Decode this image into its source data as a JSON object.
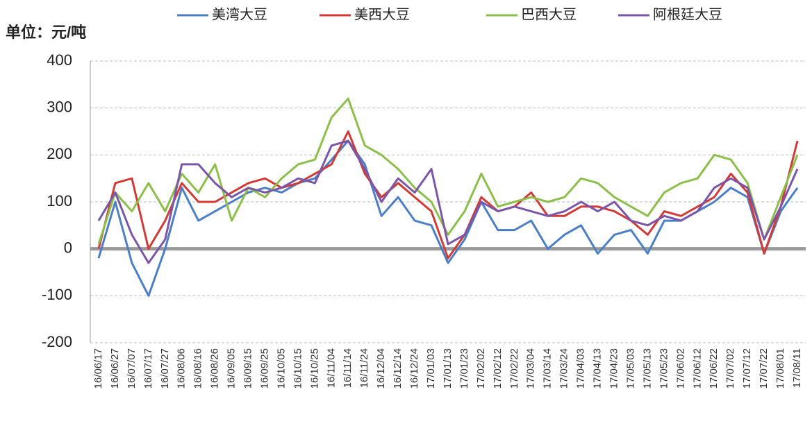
{
  "chart_data": {
    "type": "line",
    "y_label": "单位：元/吨",
    "categories": [
      "16/06/17",
      "16/06/27",
      "16/07/07",
      "16/07/17",
      "16/07/27",
      "16/08/06",
      "16/08/16",
      "16/08/26",
      "16/09/05",
      "16/09/15",
      "16/09/25",
      "16/10/05",
      "16/10/15",
      "16/10/25",
      "16/11/04",
      "16/11/14",
      "16/11/24",
      "16/12/04",
      "16/12/14",
      "16/12/24",
      "17/01/03",
      "17/01/13",
      "17/01/23",
      "17/02/02",
      "17/02/12",
      "17/02/22",
      "17/03/04",
      "17/03/14",
      "17/03/24",
      "17/04/03",
      "17/04/13",
      "17/04/23",
      "17/05/03",
      "17/05/13",
      "17/05/23",
      "17/06/02",
      "17/06/12",
      "17/06/22",
      "17/07/02",
      "17/07/12",
      "17/07/22",
      "17/08/01",
      "17/08/11"
    ],
    "series": [
      {
        "name": "美湾大豆",
        "color": "#4a7fc7",
        "values": [
          -20,
          100,
          -30,
          -100,
          0,
          130,
          60,
          80,
          100,
          120,
          130,
          120,
          140,
          150,
          190,
          230,
          180,
          70,
          110,
          60,
          50,
          -30,
          20,
          100,
          40,
          40,
          60,
          0,
          30,
          50,
          -10,
          30,
          40,
          -10,
          60,
          60,
          80,
          100,
          130,
          110,
          -10,
          80,
          130
        ]
      },
      {
        "name": "美西大豆",
        "color": "#d23a36",
        "values": [
          0,
          140,
          150,
          0,
          60,
          140,
          100,
          100,
          120,
          140,
          150,
          130,
          140,
          160,
          180,
          250,
          160,
          110,
          140,
          110,
          80,
          -20,
          30,
          110,
          80,
          90,
          120,
          70,
          70,
          90,
          90,
          80,
          60,
          30,
          80,
          70,
          90,
          110,
          160,
          120,
          -10,
          90,
          230
        ]
      },
      {
        "name": "巴西大豆",
        "color": "#8cbf4a",
        "values": [
          10,
          120,
          80,
          140,
          80,
          160,
          120,
          180,
          60,
          130,
          110,
          150,
          180,
          190,
          280,
          320,
          220,
          200,
          170,
          130,
          100,
          30,
          80,
          160,
          90,
          100,
          110,
          100,
          110,
          150,
          140,
          110,
          90,
          70,
          120,
          140,
          150,
          200,
          190,
          140,
          20,
          110,
          200
        ]
      },
      {
        "name": "阿根廷大豆",
        "color": "#7b56a8",
        "values": [
          60,
          120,
          30,
          -30,
          20,
          180,
          180,
          140,
          110,
          130,
          120,
          130,
          150,
          140,
          220,
          230,
          170,
          100,
          150,
          120,
          170,
          10,
          30,
          100,
          80,
          90,
          80,
          70,
          80,
          100,
          80,
          100,
          60,
          50,
          70,
          60,
          80,
          130,
          150,
          130,
          20,
          90,
          170
        ]
      }
    ],
    "ylim": [
      -200,
      400
    ],
    "yticks": [
      -200,
      -100,
      0,
      100,
      200,
      300,
      400
    ],
    "grid": true
  }
}
